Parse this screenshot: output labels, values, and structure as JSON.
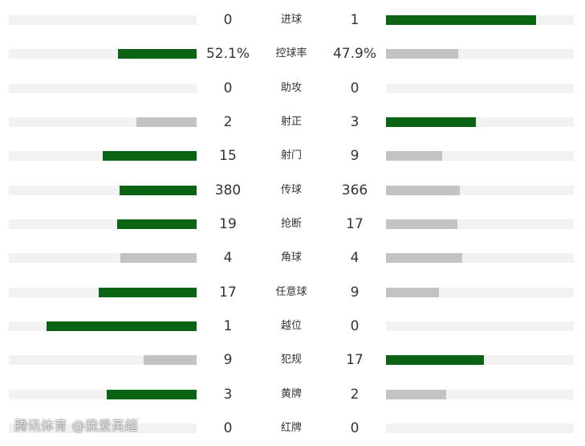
{
  "colors": {
    "winner_bar": "#0a6413",
    "loser_bar": "#c3c3c3",
    "track": "#f2f2f2"
  },
  "stats": [
    {
      "label": "进球",
      "home": "0",
      "away": "1",
      "home_share": 0.0,
      "away_share": 0.8,
      "leader": "away"
    },
    {
      "label": "控球率",
      "home": "52.1%",
      "away": "47.9%",
      "home_share": 0.419,
      "away_share": 0.385,
      "leader": "home"
    },
    {
      "label": "助攻",
      "home": "0",
      "away": "0",
      "home_share": 0.0,
      "away_share": 0.0,
      "leader": "none"
    },
    {
      "label": "射正",
      "home": "2",
      "away": "3",
      "home_share": 0.32,
      "away_share": 0.48,
      "leader": "away"
    },
    {
      "label": "射门",
      "home": "15",
      "away": "9",
      "home_share": 0.5,
      "away_share": 0.3,
      "leader": "home"
    },
    {
      "label": "传球",
      "home": "380",
      "away": "366",
      "home_share": 0.41,
      "away_share": 0.395,
      "leader": "home"
    },
    {
      "label": "抢断",
      "home": "19",
      "away": "17",
      "home_share": 0.425,
      "away_share": 0.38,
      "leader": "home"
    },
    {
      "label": "角球",
      "home": "4",
      "away": "4",
      "home_share": 0.405,
      "away_share": 0.405,
      "leader": "none"
    },
    {
      "label": "任意球",
      "home": "17",
      "away": "9",
      "home_share": 0.52,
      "away_share": 0.28,
      "leader": "home"
    },
    {
      "label": "越位",
      "home": "1",
      "away": "0",
      "home_share": 0.8,
      "away_share": 0.0,
      "leader": "home"
    },
    {
      "label": "犯规",
      "home": "9",
      "away": "17",
      "home_share": 0.28,
      "away_share": 0.52,
      "leader": "away"
    },
    {
      "label": "黄牌",
      "home": "3",
      "away": "2",
      "home_share": 0.48,
      "away_share": 0.32,
      "leader": "home"
    },
    {
      "label": "红牌",
      "home": "0",
      "away": "0",
      "home_share": 0.0,
      "away_share": 0.0,
      "leader": "none"
    }
  ],
  "watermark": "腾讯体育 @我爱英超"
}
